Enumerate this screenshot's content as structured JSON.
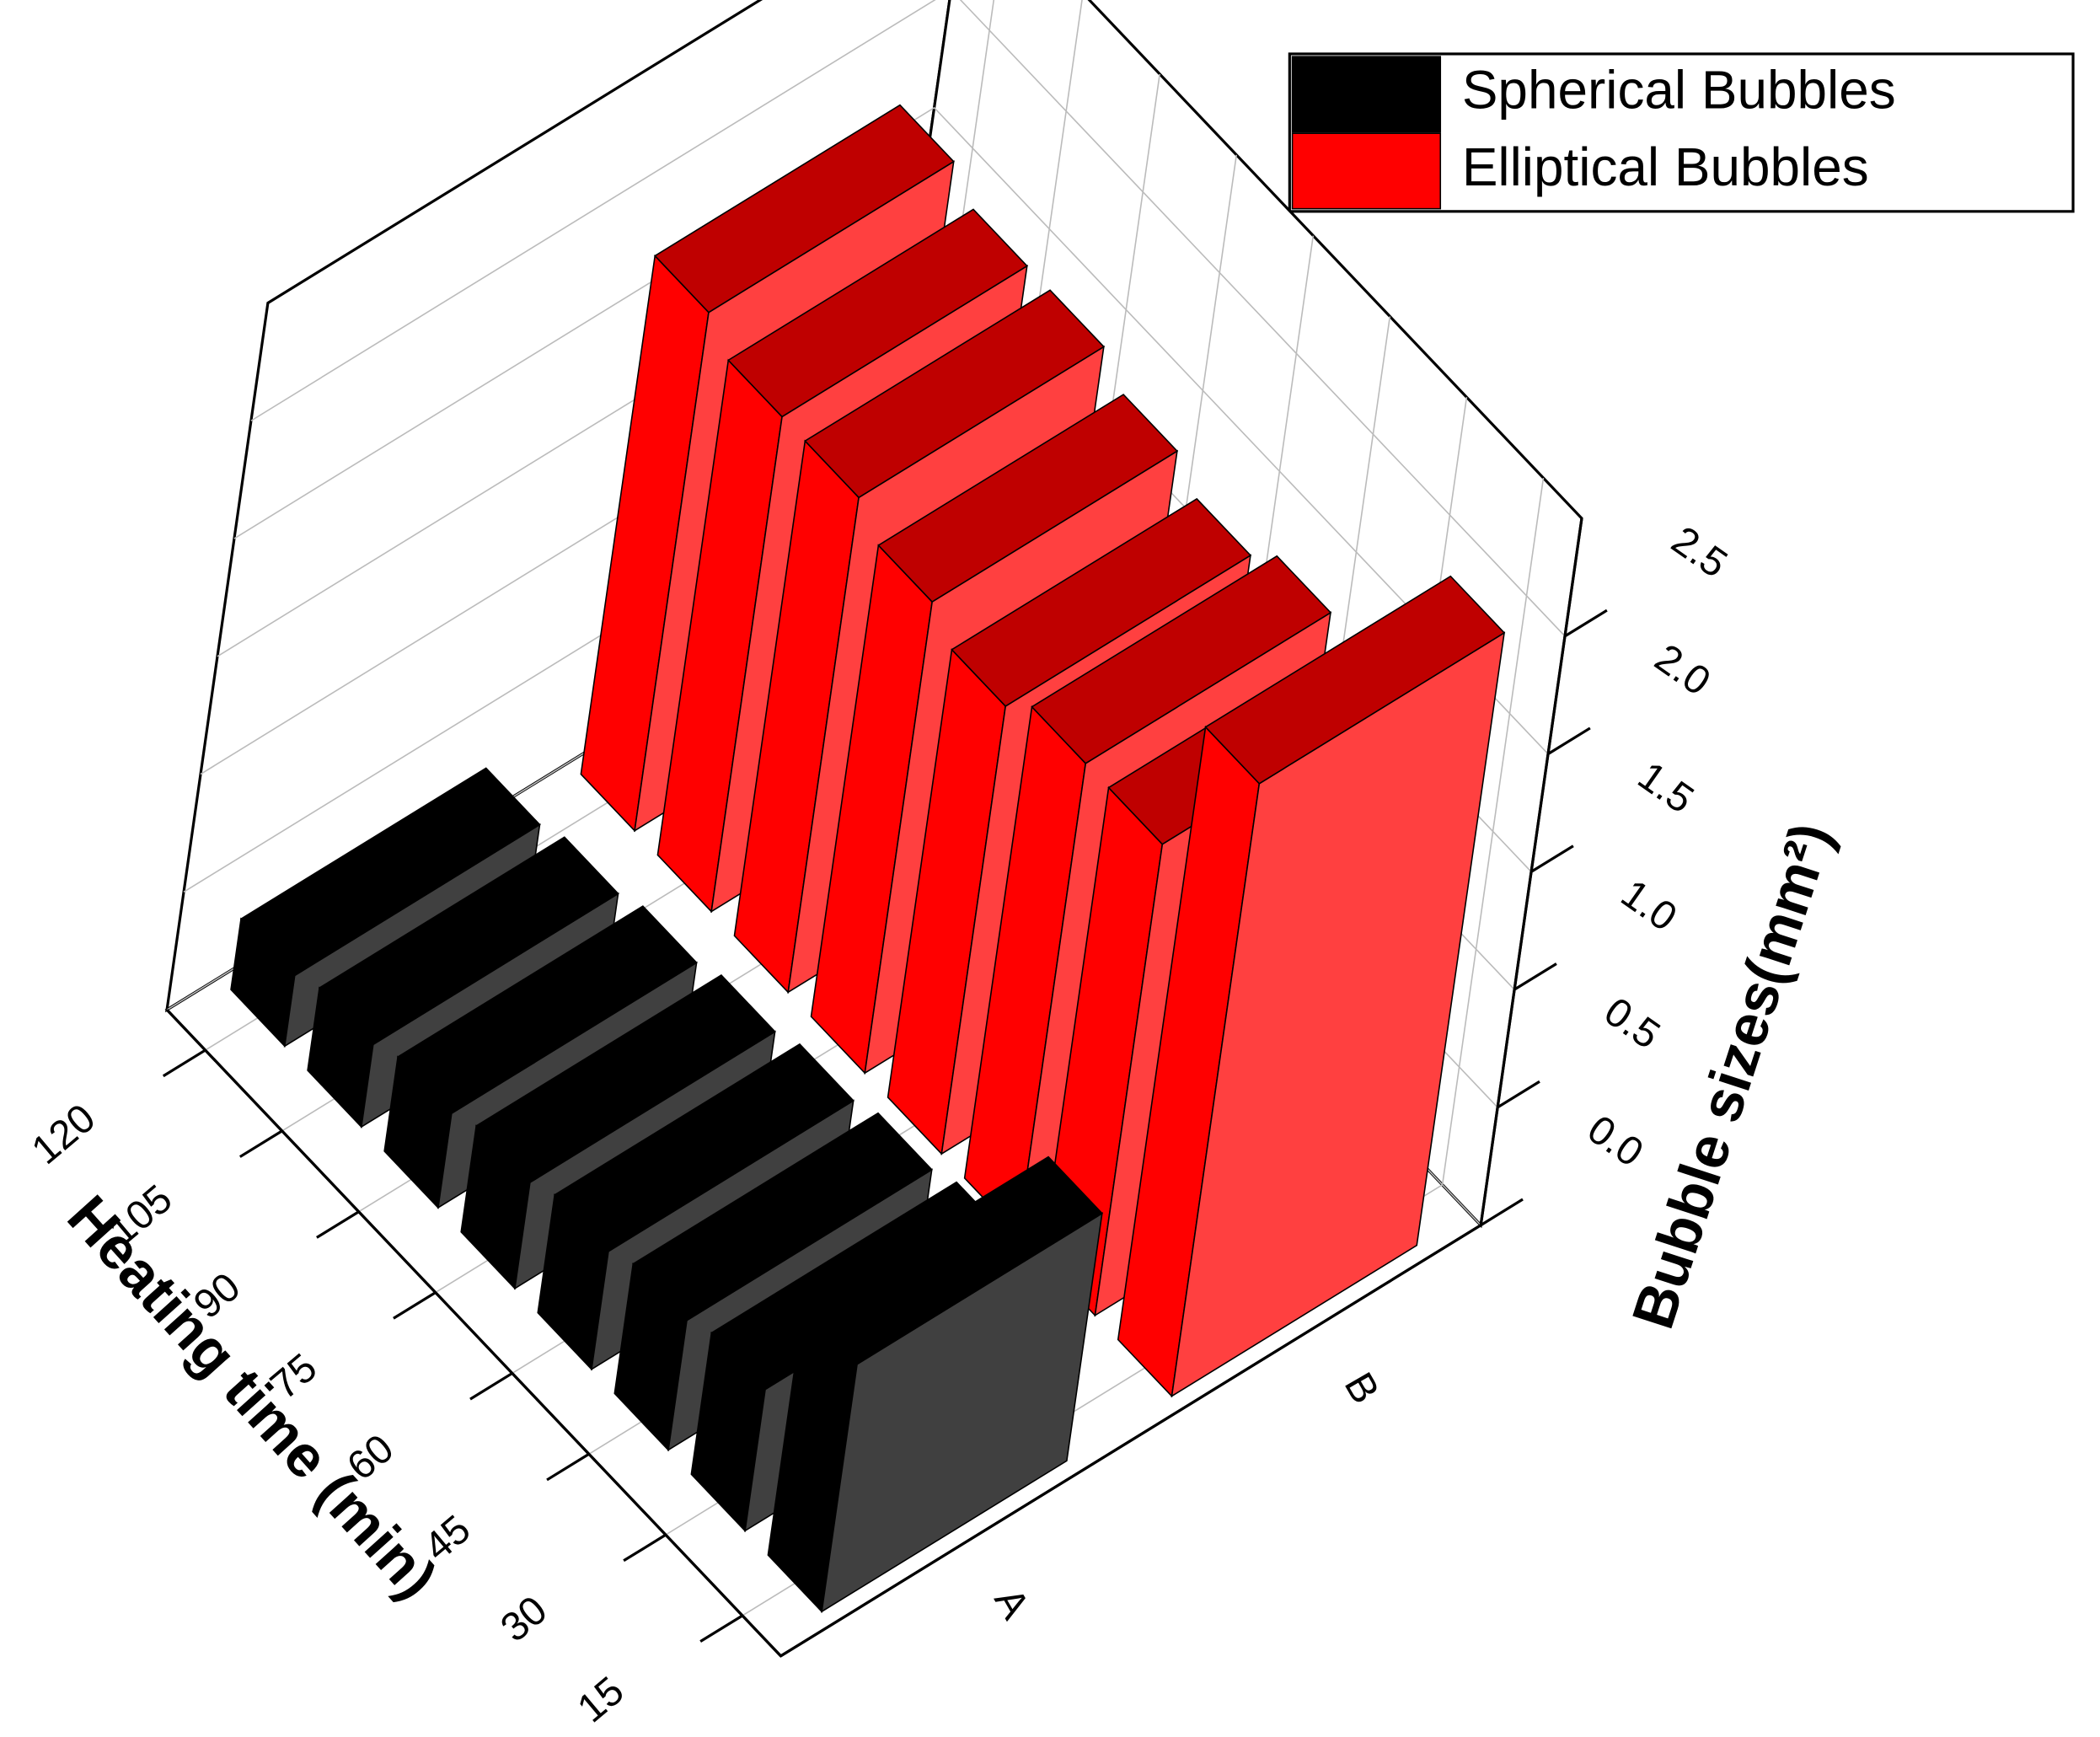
{
  "chart_data": {
    "type": "bar3d",
    "x_label": "Heating time (min)",
    "z_label": "Bubble sizes(mm²)",
    "x": [
      15,
      30,
      45,
      60,
      75,
      90,
      105,
      120
    ],
    "xlim": [
      7.5,
      127.5
    ],
    "xticks": [
      15,
      30,
      45,
      60,
      75,
      90,
      105,
      120
    ],
    "groups": [
      "A",
      "B"
    ],
    "zlim": [
      0,
      3
    ],
    "zticks": [
      {
        "value": 0,
        "label": "0.0"
      },
      0.5,
      {
        "value": 1,
        "label": "1.0"
      },
      1.5,
      {
        "value": 2,
        "label": "2.0"
      },
      2.5
    ],
    "grid": true,
    "legend": "upper right",
    "series": [
      {
        "name": "Spherical Bubbles",
        "color": "#000000",
        "values": [
          1.05,
          0.6,
          0.55,
          0.5,
          0.45,
          0.4,
          0.35,
          0.3
        ]
      },
      {
        "name": "Elliptical Bubbles",
        "color": "#ff0000",
        "values": [
          2.6,
          2.0,
          2.0,
          1.9,
          2.0,
          2.1,
          2.1,
          2.2
        ]
      }
    ]
  }
}
